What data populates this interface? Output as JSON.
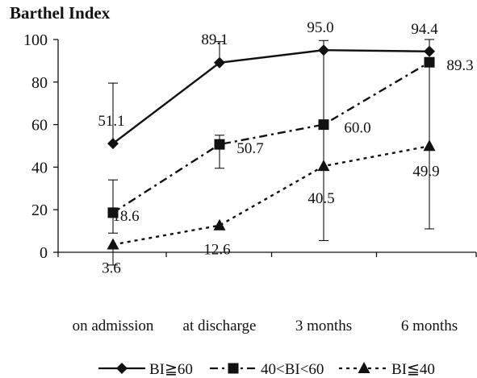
{
  "chart_data": {
    "type": "line",
    "ylabel": "Barthel Index",
    "xlabel": "",
    "ylim": [
      0,
      100
    ],
    "yticks": [
      0,
      20,
      40,
      60,
      80,
      100
    ],
    "categories": [
      "on admission",
      "at discharge",
      "3 months",
      "6 months"
    ],
    "grid": false,
    "legend_position": "bottom",
    "series": [
      {
        "name": "BI≧60",
        "marker": "diamond",
        "line_style": "solid",
        "color": "#111111",
        "values": [
          51.1,
          89.1,
          95.0,
          94.4
        ],
        "labels": [
          "51.1",
          "89.1",
          "95.0",
          "94.4"
        ],
        "error_high": [
          79.5,
          99.0,
          99.5,
          100.0
        ],
        "error_low": [
          51.1,
          89.1,
          5.5,
          94.4
        ]
      },
      {
        "name": "40<BI<60",
        "marker": "square",
        "line_style": "dash-dot",
        "color": "#111111",
        "values": [
          18.6,
          50.7,
          60.0,
          89.3
        ],
        "labels": [
          "18.6",
          "50.7",
          "60.0",
          "89.3"
        ],
        "error_high": [
          34.0,
          55.0,
          60.0,
          89.3
        ],
        "error_low": [
          9.0,
          39.5,
          60.0,
          11.0
        ]
      },
      {
        "name": "BI≦40",
        "marker": "triangle",
        "line_style": "dotted",
        "color": "#111111",
        "values": [
          3.6,
          12.6,
          40.5,
          49.9
        ],
        "labels": [
          "3.6",
          "12.6",
          "40.5",
          "49.9"
        ],
        "error_high": [
          3.6,
          12.6,
          40.5,
          49.9
        ],
        "error_low": [
          -6.0,
          12.6,
          40.5,
          49.9
        ]
      }
    ]
  }
}
